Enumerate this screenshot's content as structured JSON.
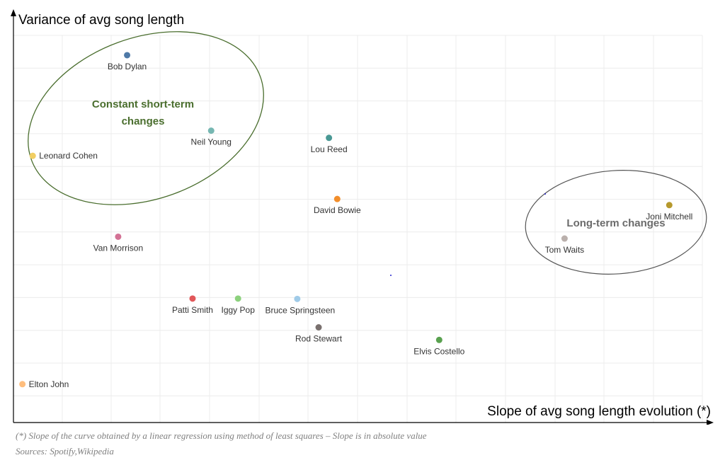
{
  "chart_data": {
    "type": "scatter",
    "xlabel": "Slope of avg song length evolution (*)",
    "ylabel": "Variance of avg song length",
    "grid": true,
    "points": [
      {
        "label": "Bob Dylan",
        "x": 0.165,
        "y": 0.945,
        "color": "#4e79a7"
      },
      {
        "label": "Neil Young",
        "x": 0.287,
        "y": 0.735,
        "color": "#76b7b2"
      },
      {
        "label": "Leonard Cohen",
        "x": 0.028,
        "y": 0.665,
        "color": "#f1ce63"
      },
      {
        "label": "Lou Reed",
        "x": 0.458,
        "y": 0.715,
        "color": "#499894"
      },
      {
        "label": "David Bowie",
        "x": 0.47,
        "y": 0.545,
        "color": "#f28e2b"
      },
      {
        "label": "Joni Mitchell",
        "x": 0.952,
        "y": 0.528,
        "color": "#b6992d"
      },
      {
        "label": "Tom Waits",
        "x": 0.8,
        "y": 0.435,
        "color": "#bab0ac"
      },
      {
        "label": "Van Morrison",
        "x": 0.152,
        "y": 0.44,
        "color": "#d37295"
      },
      {
        "label": "Patti Smith",
        "x": 0.26,
        "y": 0.268,
        "color": "#e15759"
      },
      {
        "label": "Iggy Pop",
        "x": 0.326,
        "y": 0.268,
        "color": "#8cd17d"
      },
      {
        "label": "Bruce Springsteen",
        "x": 0.412,
        "y": 0.267,
        "color": "#a0cbe8"
      },
      {
        "label": "Rod Stewart",
        "x": 0.443,
        "y": 0.188,
        "color": "#79706e"
      },
      {
        "label": "Elvis Costello",
        "x": 0.618,
        "y": 0.153,
        "color": "#59a14f"
      },
      {
        "label": "Elton John",
        "x": 0.013,
        "y": 0.03,
        "color": "#ffbe7d"
      }
    ],
    "annotations": [
      {
        "text": "Constant short-term changes",
        "lines": [
          "Constant short-term",
          "changes"
        ],
        "color": "#4a6e2e"
      },
      {
        "text": "Long-term changes",
        "lines": [
          "Long-term changes"
        ],
        "color": "#6b6b6b"
      }
    ]
  },
  "footnotes": {
    "note": "(*) Slope of the curve obtained by a linear regression using method of least squares – Slope is in absolute value",
    "sources": "Sources: Spotify,Wikipedia"
  }
}
